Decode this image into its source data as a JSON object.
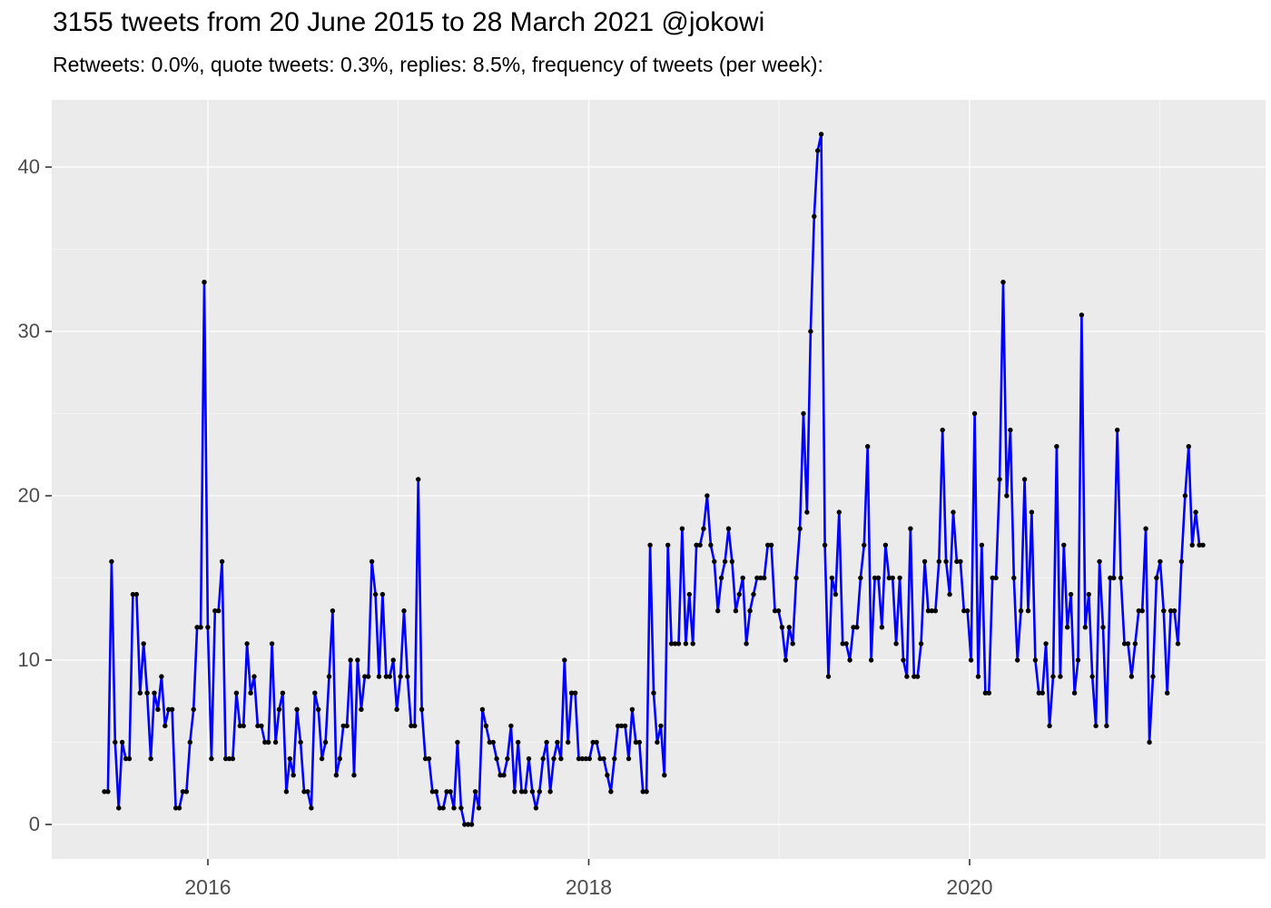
{
  "title": "3155 tweets from 20 June 2015 to 28 March 2021 @jokowi",
  "subtitle": "Retweets: 0.0%, quote tweets: 0.3%, replies: 8.5%, frequency of tweets (per week):",
  "chart_data": {
    "type": "line",
    "series_name": "tweets-per-week",
    "x_start_label": "20 June 2015",
    "x_end_label": "28 March 2021",
    "total_tweets": "3155",
    "account": "@jokowi",
    "y_ticks": [
      0,
      10,
      20,
      30,
      40
    ],
    "y_minor_ticks": [
      5,
      15,
      25,
      35
    ],
    "ylim": [
      -2.1,
      44.1
    ],
    "x_ticks": [
      {
        "label": "2016",
        "pos": 0.0942
      },
      {
        "label": "2018",
        "pos": 0.4409
      },
      {
        "label": "2020",
        "pos": 0.7876
      }
    ],
    "x_minor_pos": [
      0.2674,
      0.614,
      0.9608
    ],
    "grid": "on",
    "legend": "none",
    "colors": {
      "line": "#0000FF",
      "point": "#000000",
      "panel_bg": "#EBEBEB",
      "grid": "#FFFFFF",
      "axis_text": "#4D4D4D",
      "tick_mark": "#333333",
      "title_text": "#000000"
    },
    "values": [
      2,
      2,
      16,
      5,
      1,
      5,
      4,
      4,
      14,
      14,
      8,
      11,
      8,
      4,
      8,
      7,
      9,
      6,
      7,
      7,
      1,
      1,
      2,
      2,
      5,
      7,
      12,
      12,
      33,
      12,
      4,
      13,
      13,
      16,
      4,
      4,
      4,
      8,
      6,
      6,
      11,
      8,
      9,
      6,
      6,
      5,
      5,
      11,
      5,
      7,
      8,
      2,
      4,
      3,
      7,
      5,
      2,
      2,
      1,
      8,
      7,
      4,
      5,
      9,
      13,
      3,
      4,
      6,
      6,
      10,
      3,
      10,
      7,
      9,
      9,
      16,
      14,
      9,
      14,
      9,
      9,
      10,
      7,
      9,
      13,
      9,
      6,
      6,
      21,
      7,
      4,
      4,
      2,
      2,
      1,
      1,
      2,
      2,
      1,
      5,
      1,
      0,
      0,
      0,
      2,
      1,
      7,
      6,
      5,
      5,
      4,
      3,
      3,
      4,
      6,
      2,
      5,
      2,
      2,
      4,
      2,
      1,
      2,
      4,
      5,
      2,
      4,
      5,
      4,
      10,
      5,
      8,
      8,
      4,
      4,
      4,
      4,
      5,
      5,
      4,
      4,
      3,
      2,
      4,
      6,
      6,
      6,
      4,
      7,
      5,
      5,
      2,
      2,
      17,
      8,
      5,
      6,
      3,
      17,
      11,
      11,
      11,
      18,
      11,
      14,
      11,
      17,
      17,
      18,
      20,
      17,
      16,
      13,
      15,
      16,
      18,
      16,
      13,
      14,
      15,
      11,
      13,
      14,
      15,
      15,
      15,
      17,
      17,
      13,
      13,
      12,
      10,
      12,
      11,
      15,
      18,
      25,
      19,
      30,
      37,
      41,
      42,
      17,
      9,
      15,
      14,
      19,
      11,
      11,
      10,
      12,
      12,
      15,
      17,
      23,
      10,
      15,
      15,
      12,
      17,
      15,
      15,
      11,
      15,
      10,
      9,
      18,
      9,
      9,
      11,
      16,
      13,
      13,
      13,
      16,
      24,
      16,
      14,
      19,
      16,
      16,
      13,
      13,
      10,
      25,
      9,
      17,
      8,
      8,
      15,
      15,
      21,
      33,
      20,
      24,
      15,
      10,
      13,
      21,
      13,
      19,
      10,
      8,
      8,
      11,
      6,
      9,
      23,
      9,
      17,
      12,
      14,
      8,
      10,
      31,
      12,
      14,
      9,
      6,
      16,
      12,
      6,
      15,
      15,
      24,
      15,
      11,
      11,
      9,
      11,
      13,
      13,
      18,
      5,
      9,
      15,
      16,
      13,
      8,
      13,
      13,
      11,
      16,
      20,
      23,
      17,
      19,
      17,
      17
    ]
  }
}
